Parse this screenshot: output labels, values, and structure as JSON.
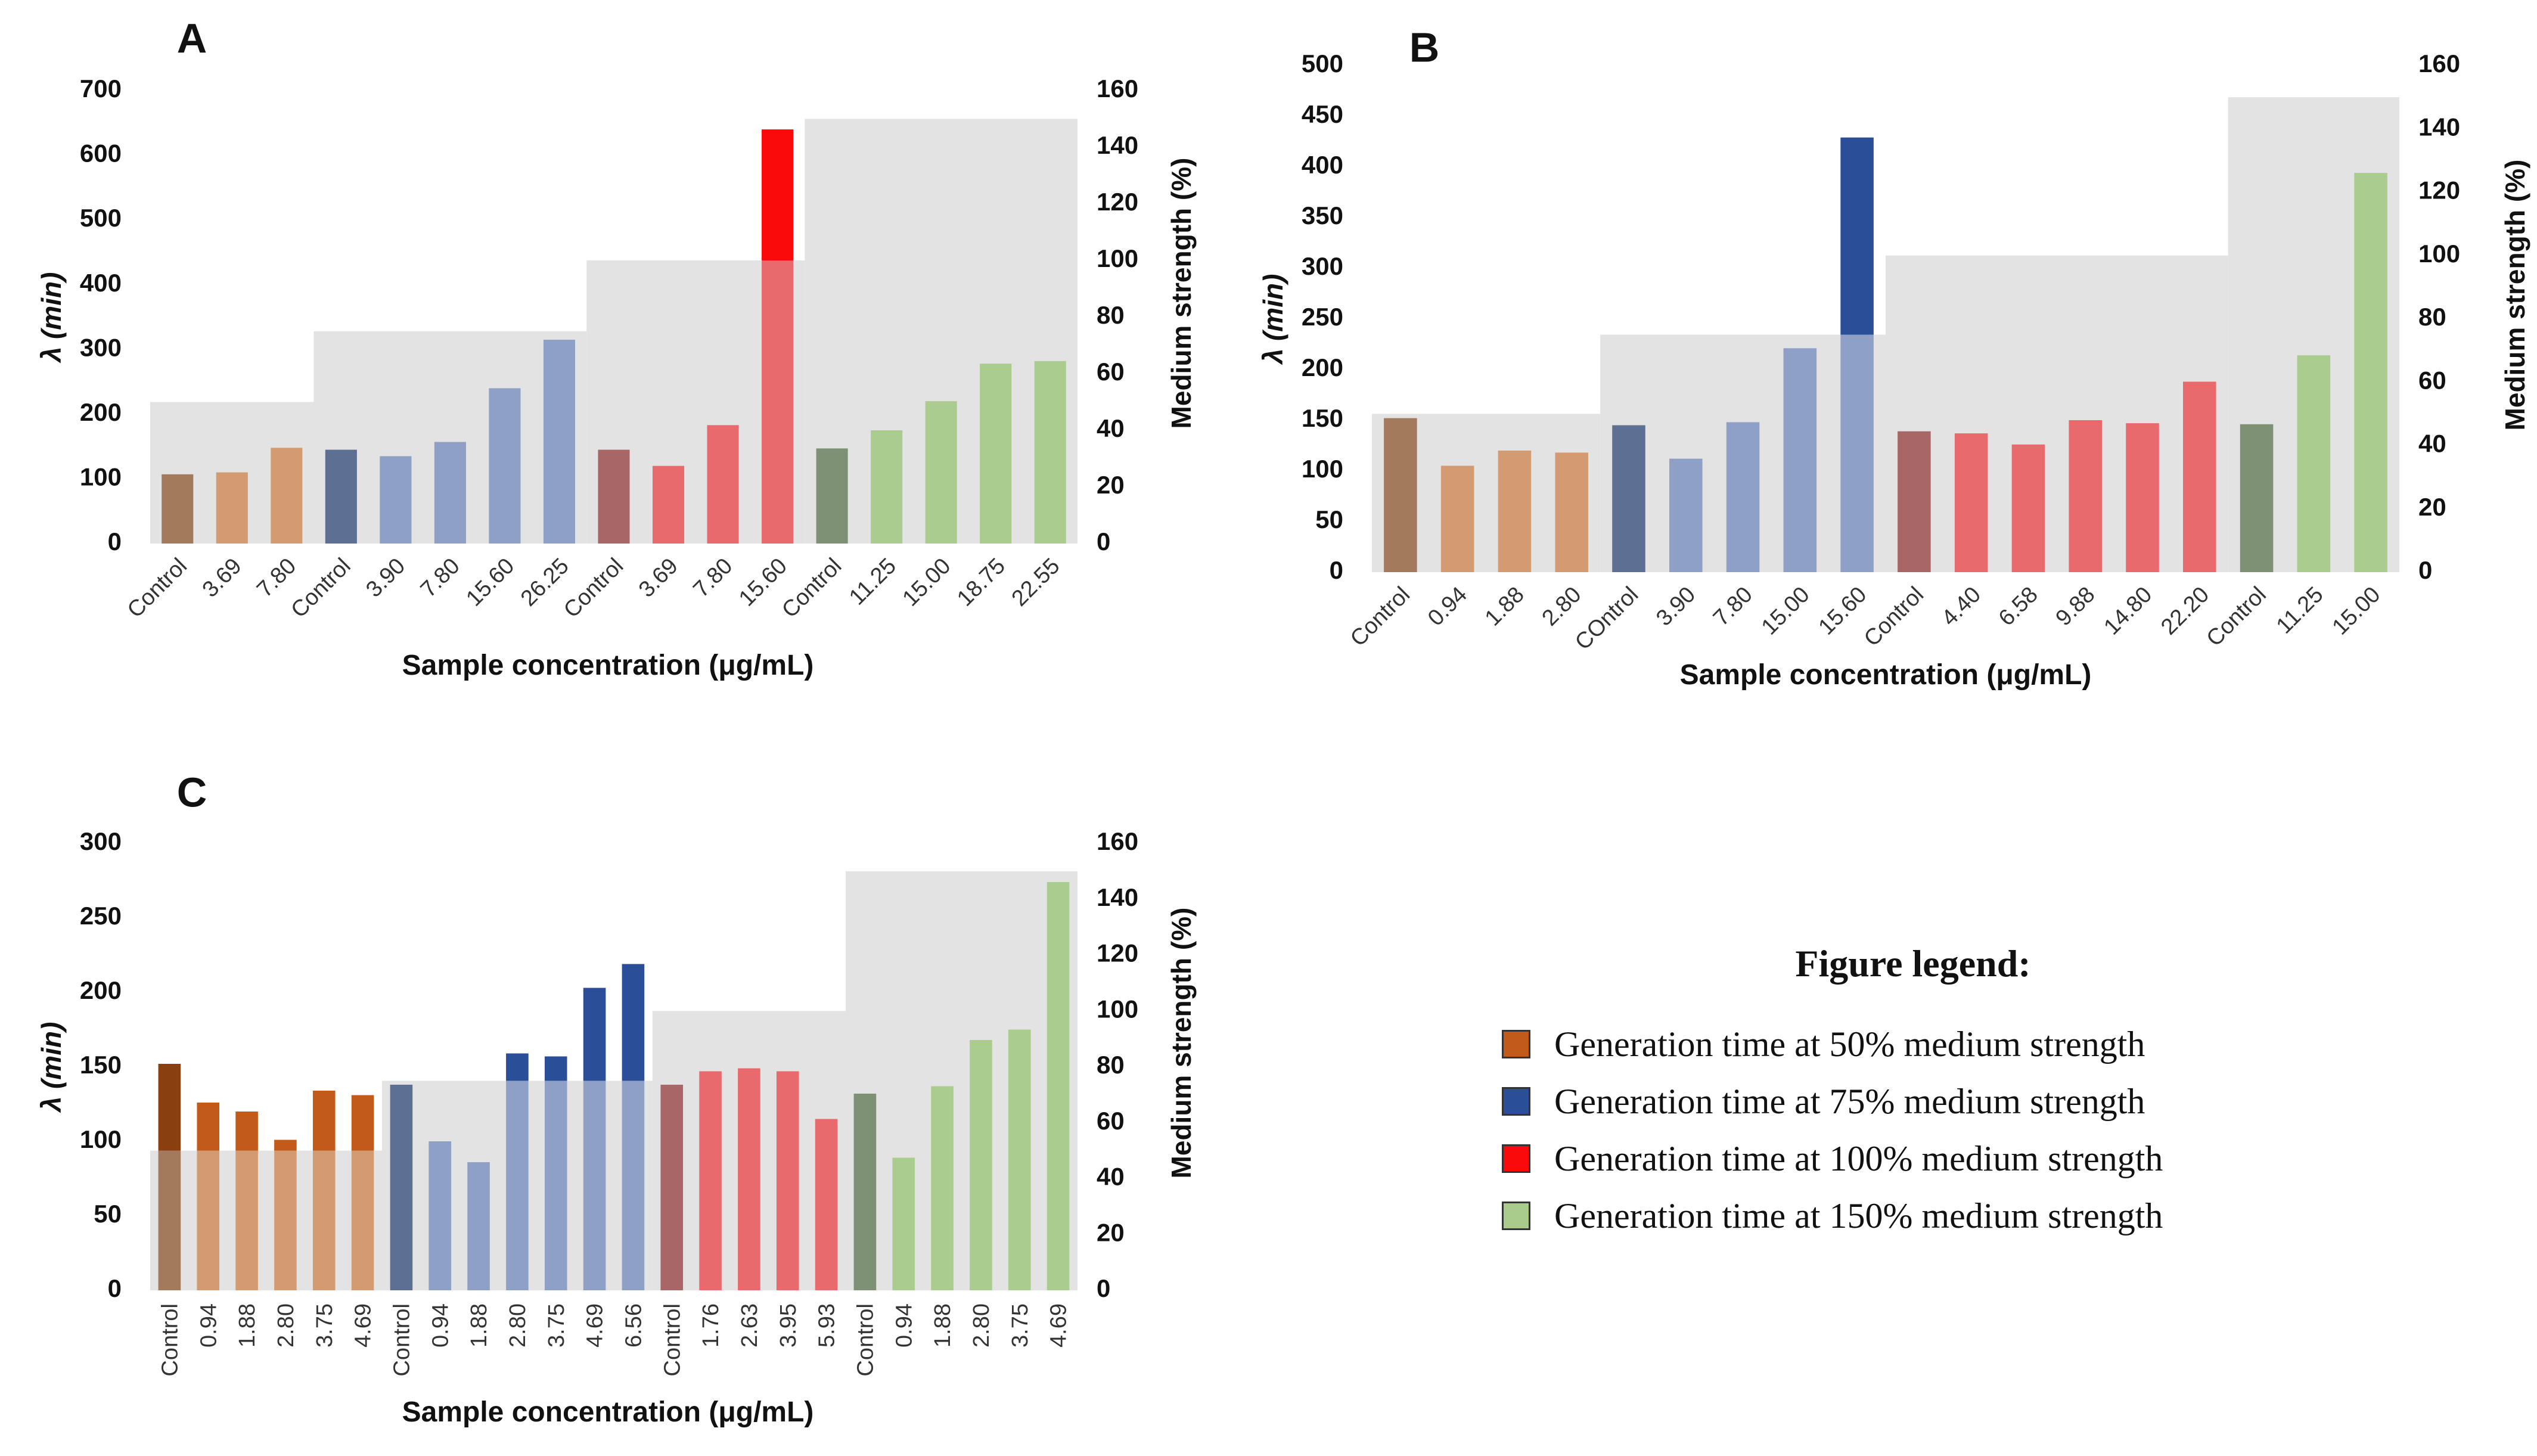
{
  "chart_data": [
    {
      "type": "bar",
      "panel_label": "A",
      "xlabel": "Sample concentration (μg/mL)",
      "ylabel": "λ (min)",
      "y2label": "Medium strength (%)",
      "ylim": [
        0,
        700
      ],
      "yticks": [
        0,
        100,
        200,
        300,
        400,
        500,
        600,
        700
      ],
      "y2lim": [
        0,
        160
      ],
      "y2ticks": [
        0,
        20,
        40,
        60,
        80,
        100,
        120,
        140,
        160
      ],
      "label_style": "tilted",
      "groups": [
        {
          "medium_strength": 50,
          "categories": [
            "Control",
            "3.69",
            "7.80"
          ],
          "values": [
            107,
            110,
            148
          ]
        },
        {
          "medium_strength": 75,
          "categories": [
            "Control",
            "3.90",
            "7.80",
            "15.60",
            "26.25"
          ],
          "values": [
            145,
            135,
            157,
            240,
            315
          ]
        },
        {
          "medium_strength": 100,
          "categories": [
            "Control",
            "3.69",
            "7.80",
            "15.60"
          ],
          "values": [
            145,
            120,
            183,
            640
          ]
        },
        {
          "medium_strength": 150,
          "categories": [
            "Control",
            "11.25",
            "15.00",
            "18.75",
            "22.55"
          ],
          "values": [
            147,
            175,
            220,
            278,
            282
          ]
        }
      ]
    },
    {
      "type": "bar",
      "panel_label": "B",
      "xlabel": "Sample concentration (μg/mL)",
      "ylabel": "λ (min)",
      "y2label": "Medium strength (%)",
      "ylim": [
        0,
        500
      ],
      "yticks": [
        0,
        50,
        100,
        150,
        200,
        250,
        300,
        350,
        400,
        450,
        500
      ],
      "y2lim": [
        0,
        160
      ],
      "y2ticks": [
        0,
        20,
        40,
        60,
        80,
        100,
        120,
        140,
        160
      ],
      "label_style": "tilted",
      "groups": [
        {
          "medium_strength": 50,
          "categories": [
            "Control",
            "0.94",
            "1.88",
            "2.80"
          ],
          "values": [
            152,
            105,
            120,
            118
          ]
        },
        {
          "medium_strength": 75,
          "categories": [
            "COntrol",
            "3.90",
            "7.80",
            "15.00",
            "15.60"
          ],
          "values": [
            145,
            112,
            148,
            221,
            429
          ]
        },
        {
          "medium_strength": 100,
          "categories": [
            "Control",
            "4.40",
            "6.58",
            "9.88",
            "14.80",
            "22.20"
          ],
          "values": [
            139,
            137,
            126,
            150,
            147,
            188
          ]
        },
        {
          "medium_strength": 150,
          "categories": [
            "Control",
            "11.25",
            "15.00"
          ],
          "values": [
            146,
            214,
            394
          ]
        }
      ]
    },
    {
      "type": "bar",
      "panel_label": "C",
      "xlabel": "Sample concentration (μg/mL)",
      "ylabel": "λ (min)",
      "y2label": "Medium strength (%)",
      "ylim": [
        0,
        300
      ],
      "yticks": [
        0,
        50,
        100,
        150,
        200,
        250,
        300
      ],
      "y2lim": [
        0,
        160
      ],
      "y2ticks": [
        0,
        20,
        40,
        60,
        80,
        100,
        120,
        140,
        160
      ],
      "label_style": "vertical",
      "groups": [
        {
          "medium_strength": 50,
          "categories": [
            "Control",
            "0.94",
            "1.88",
            "2.80",
            "3.75",
            "4.69"
          ],
          "values": [
            152,
            126,
            120,
            101,
            134,
            131
          ]
        },
        {
          "medium_strength": 75,
          "categories": [
            "Control",
            "0.94",
            "1.88",
            "2.80",
            "3.75",
            "4.69",
            "6.56"
          ],
          "values": [
            138,
            100,
            86,
            159,
            157,
            203,
            219
          ]
        },
        {
          "medium_strength": 100,
          "categories": [
            "Control",
            "1.76",
            "2.63",
            "3.95",
            "5.93"
          ],
          "values": [
            138,
            147,
            149,
            147,
            115
          ]
        },
        {
          "medium_strength": 150,
          "categories": [
            "Control",
            "0.94",
            "1.88",
            "2.80",
            "3.75",
            "4.69"
          ],
          "values": [
            132,
            89,
            137,
            168,
            175,
            274
          ]
        }
      ]
    }
  ],
  "colors": {
    "background_band": "#e3e3e3",
    "groups": {
      "50": {
        "control": "#a37a5c",
        "bar": "#d39b72",
        "bar_full": "#c25a1a",
        "control_full": "#8a3f10"
      },
      "75": {
        "control": "#5e6f94",
        "bar": "#8ea0c6",
        "bar_full": "#2b4e98",
        "control_full": "#2b4e98"
      },
      "100": {
        "control": "#a86666",
        "bar": "#e96a6d",
        "bar_full": "#fb0a0c",
        "control_full": "#c03030"
      },
      "150": {
        "control": "#7f9175",
        "bar": "#aacc8e",
        "bar_full": "#a9cc8d",
        "control_full": "#6e8a60"
      }
    }
  },
  "legend": {
    "title": "Figure legend:",
    "items": [
      {
        "label": "Generation time at 50% medium strength",
        "color": "#c25a1a"
      },
      {
        "label": "Generation time at 75% medium strength",
        "color": "#2b4e98"
      },
      {
        "label": "Generation time at 100% medium strength",
        "color": "#fb0a0c"
      },
      {
        "label": "Generation time at 150% medium strength",
        "color": "#a9cc8d"
      }
    ]
  }
}
